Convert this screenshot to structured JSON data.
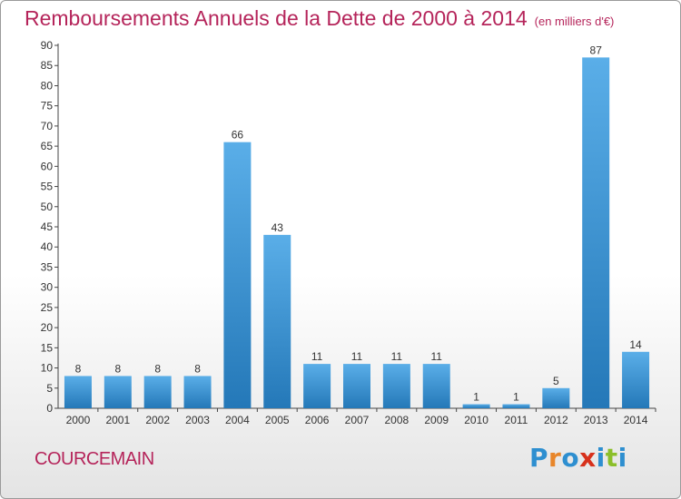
{
  "title": "Remboursements Annuels de la Dette de 2000 à 2014",
  "subtitle": "(en milliers d'€)",
  "location": "COURCEMAIN",
  "logo": {
    "letters": [
      "P",
      "r",
      "o",
      "x",
      "i",
      "t",
      "i"
    ],
    "colors": [
      "#2e8fd0",
      "#e8862a",
      "#2e8fd0",
      "#d7311c",
      "#2e8fd0",
      "#8bbf2a",
      "#2e8fd0"
    ]
  },
  "colors": {
    "bar_light": "#5aaee8",
    "bar_dark": "#2478b8",
    "title": "#b5245a"
  },
  "chart_data": {
    "type": "bar",
    "categories": [
      "2000",
      "2001",
      "2002",
      "2003",
      "2004",
      "2005",
      "2006",
      "2007",
      "2008",
      "2009",
      "2010",
      "2011",
      "2012",
      "2013",
      "2014"
    ],
    "values": [
      8,
      8,
      8,
      8,
      66,
      43,
      11,
      11,
      11,
      11,
      1,
      1,
      5,
      87,
      14
    ],
    "data_labels": [
      "8",
      "8",
      "8",
      "8",
      "66",
      "43",
      "11",
      "11",
      "11",
      "11",
      "1",
      "1",
      "5",
      "87",
      "14"
    ],
    "yticks": [
      "0",
      "5",
      "10",
      "15",
      "20",
      "25",
      "30",
      "35",
      "40",
      "45",
      "50",
      "55",
      "60",
      "65",
      "70",
      "75",
      "80",
      "85",
      "90"
    ],
    "ylim": [
      0,
      90
    ],
    "grid": false,
    "legend": "none"
  }
}
